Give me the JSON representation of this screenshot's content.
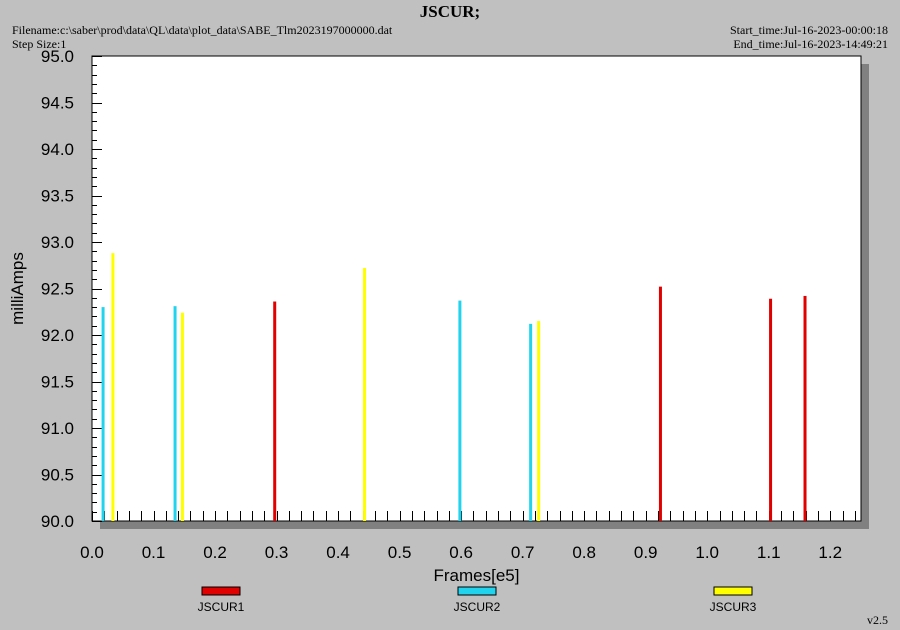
{
  "header": {
    "title": "JSCUR;",
    "filename": "Filename:c:\\saber\\prod\\data\\QL\\data\\plot_data\\SABE_Tlm2023197000000.dat",
    "step_size": "Step Size:1",
    "start_time": "Start_time:Jul-16-2023-00:00:18",
    "end_time": "End_time:Jul-16-2023-14:49:21"
  },
  "footer": {
    "version": "v2.5"
  },
  "chart_data": {
    "type": "bar",
    "title": "JSCUR;",
    "xlabel": "Frames[e5]",
    "ylabel": "milliAmps",
    "xlim": [
      0.0,
      1.25
    ],
    "ylim": [
      90.0,
      95.0
    ],
    "x_ticks": [
      "0.0",
      "0.1",
      "0.2",
      "0.3",
      "0.4",
      "0.5",
      "0.6",
      "0.7",
      "0.8",
      "0.9",
      "1.0",
      "1.1",
      "1.2"
    ],
    "y_ticks": [
      "90.0",
      "90.5",
      "91.0",
      "91.5",
      "92.0",
      "92.5",
      "93.0",
      "93.5",
      "94.0",
      "94.5",
      "95.0"
    ],
    "grid": false,
    "legend_position": "bottom",
    "series": [
      {
        "name": "JSCUR1",
        "color": "#e00000",
        "points": [
          {
            "x": 0.297,
            "y": 92.36
          },
          {
            "x": 0.924,
            "y": 92.52
          },
          {
            "x": 1.103,
            "y": 92.39
          },
          {
            "x": 1.159,
            "y": 92.42
          }
        ]
      },
      {
        "name": "JSCUR2",
        "color": "#22d3ee",
        "points": [
          {
            "x": 0.018,
            "y": 92.3
          },
          {
            "x": 0.135,
            "y": 92.31
          },
          {
            "x": 0.598,
            "y": 92.37
          },
          {
            "x": 0.713,
            "y": 92.12
          }
        ]
      },
      {
        "name": "JSCUR3",
        "color": "#ffff00",
        "points": [
          {
            "x": 0.034,
            "y": 92.88
          },
          {
            "x": 0.147,
            "y": 92.24
          },
          {
            "x": 0.443,
            "y": 92.72
          },
          {
            "x": 0.726,
            "y": 92.15
          }
        ]
      }
    ]
  }
}
